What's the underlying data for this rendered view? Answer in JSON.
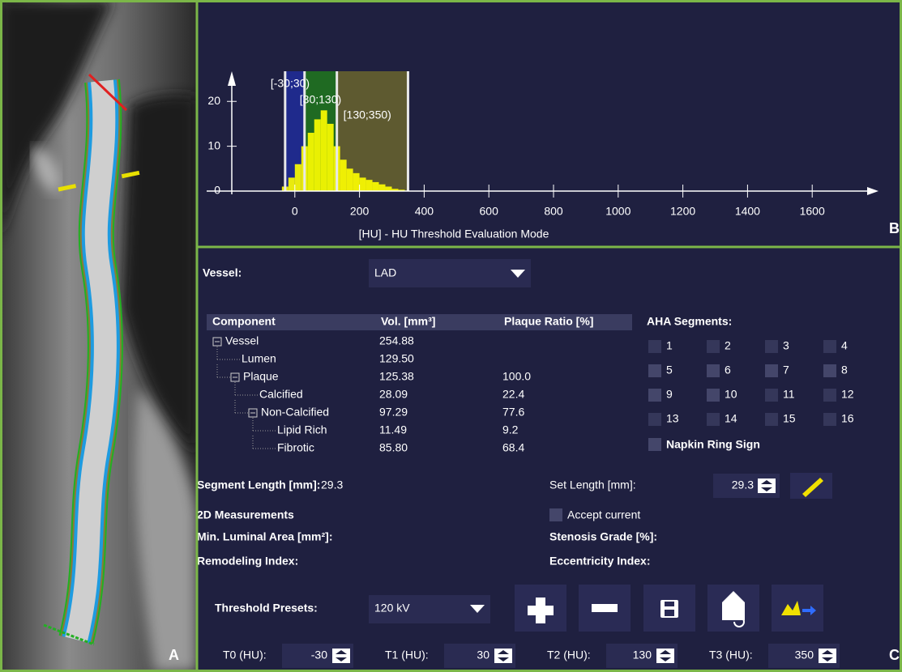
{
  "panels": {
    "a": "A",
    "b": "B",
    "c": "C"
  },
  "histogram": {
    "type": "histogram",
    "bins": [
      -40,
      -20,
      0,
      20,
      40,
      60,
      80,
      100,
      120,
      140,
      160,
      180,
      200,
      220,
      240,
      260,
      280,
      300,
      320,
      340
    ],
    "counts": [
      1,
      3,
      6,
      10,
      13,
      16,
      18,
      15,
      10,
      7,
      5,
      4,
      3,
      2.5,
      2,
      1.5,
      1,
      0.5,
      0.3
    ],
    "color": "#ffff00",
    "xlim": [
      -200,
      1800
    ],
    "ylim": [
      0,
      26
    ],
    "xticks": [
      0,
      200,
      400,
      600,
      800,
      1000,
      1200,
      1400,
      1600
    ],
    "yticks": [
      0,
      10,
      20
    ],
    "xlabel": "[HU] - HU Threshold Evaluation Mode",
    "range_labels": [
      "[-30;30)",
      "[30;130)",
      "[130;350)"
    ],
    "range_colors": [
      "#1f2a8c",
      "#1f6a22",
      "#5e5a30"
    ]
  },
  "vessel": {
    "label": "Vessel:",
    "value": "LAD"
  },
  "table": {
    "headers": [
      "Component",
      "Vol. [mm³]",
      "Plaque Ratio [%]"
    ],
    "tree": {
      "name": "Vessel",
      "vol": "254.88",
      "children": [
        {
          "name": "Lumen",
          "vol": "129.50",
          "color": "#ff2a2a"
        },
        {
          "name": "Plaque",
          "vol": "125.38",
          "ratio": "100.0",
          "children": [
            {
              "name": "Calcified",
              "vol": "28.09",
              "ratio": "22.4",
              "color": "#e8e000"
            },
            {
              "name": "Non-Calcified",
              "vol": "97.29",
              "ratio": "77.6",
              "children": [
                {
                  "name": "Lipid Rich",
                  "vol": "11.49",
                  "ratio": "9.2",
                  "color": "#2f8cff"
                },
                {
                  "name": "Fibrotic",
                  "vol": "85.80",
                  "ratio": "68.4",
                  "color": "#22b022"
                }
              ]
            }
          ]
        }
      ]
    }
  },
  "aha": {
    "title": "AHA Segments:",
    "segments": [
      {
        "number": 1,
        "enabled": false
      },
      {
        "number": 2,
        "enabled": false
      },
      {
        "number": 3,
        "enabled": false
      },
      {
        "number": 4,
        "enabled": false
      },
      {
        "number": 5,
        "enabled": true
      },
      {
        "number": 6,
        "enabled": true
      },
      {
        "number": 7,
        "enabled": true
      },
      {
        "number": 8,
        "enabled": true
      },
      {
        "number": 9,
        "enabled": true
      },
      {
        "number": 10,
        "enabled": true
      },
      {
        "number": 11,
        "enabled": false
      },
      {
        "number": 12,
        "enabled": false
      },
      {
        "number": 13,
        "enabled": false
      },
      {
        "number": 14,
        "enabled": false
      },
      {
        "number": 15,
        "enabled": false
      },
      {
        "number": 16,
        "enabled": false
      }
    ],
    "napkin": "Napkin Ring Sign"
  },
  "segment_length": {
    "label": "Segment Length [mm]:",
    "value": 29.3
  },
  "set_length": {
    "label": "Set Length [mm]:",
    "value": 29.3
  },
  "measurements": {
    "title": "2D Measurements",
    "accept": "Accept current",
    "min_luminal": "Min. Luminal Area [mm²]:",
    "stenosis": "Stenosis Grade [%]:",
    "remodeling": "Remodeling Index:",
    "eccentricity": "Eccentricity Index:"
  },
  "presets": {
    "label": "Threshold Presets:",
    "value": "120 kV"
  },
  "thresholds": [
    {
      "label": "T0 (HU):",
      "value": -30
    },
    {
      "label": "T1 (HU):",
      "value": 30
    },
    {
      "label": "T2 (HU):",
      "value": 130
    },
    {
      "label": "T3 (HU):",
      "value": 350
    }
  ]
}
